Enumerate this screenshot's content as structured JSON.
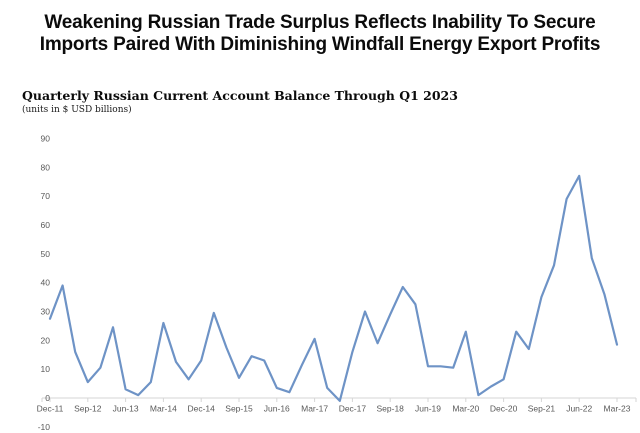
{
  "header": {
    "title_lines": [
      "Weakening Russian Trade Surplus Reflects Inability To Secure",
      "Imports Paired With Diminishing Windfall Energy Export Profits"
    ]
  },
  "chart_data": {
    "type": "line",
    "title": "Quarterly Russian Current Account Balance Through Q1 2023",
    "units_note": "(units in $ USD billions)",
    "x": [
      "Dec-11",
      "Mar-12",
      "Jun-12",
      "Sep-12",
      "Dec-12",
      "Mar-13",
      "Jun-13",
      "Sep-13",
      "Dec-13",
      "Mar-14",
      "Jun-14",
      "Sep-14",
      "Dec-14",
      "Mar-15",
      "Jun-15",
      "Sep-15",
      "Dec-15",
      "Mar-16",
      "Jun-16",
      "Sep-16",
      "Dec-16",
      "Mar-17",
      "Jun-17",
      "Sep-17",
      "Dec-17",
      "Mar-18",
      "Jun-18",
      "Sep-18",
      "Dec-18",
      "Mar-19",
      "Jun-19",
      "Sep-19",
      "Dec-19",
      "Mar-20",
      "Jun-20",
      "Sep-20",
      "Dec-20",
      "Mar-21",
      "Jun-21",
      "Sep-21",
      "Dec-21",
      "Mar-22",
      "Jun-22",
      "Sep-22",
      "Dec-22",
      "Mar-23"
    ],
    "values": [
      27.5,
      39,
      16,
      5.5,
      10.5,
      24.5,
      3,
      1,
      5.5,
      26,
      12.5,
      6.5,
      13,
      29.5,
      17.5,
      7,
      14.5,
      13,
      3.5,
      2,
      11.5,
      20.5,
      3.5,
      -1,
      16,
      30,
      19,
      29,
      38.5,
      32.5,
      11,
      11,
      10.5,
      23,
      1,
      4,
      6.5,
      23,
      17,
      35,
      46,
      69,
      77,
      48.5,
      36,
      18.5
    ],
    "x_ticks_shown": [
      "Dec-11",
      "Sep-12",
      "Jun-13",
      "Mar-14",
      "Dec-14",
      "Sep-15",
      "Jun-16",
      "Mar-17",
      "Dec-17",
      "Sep-18",
      "Jun-19",
      "Mar-20",
      "Dec-20",
      "Sep-21",
      "Jun-22",
      "Mar-23"
    ],
    "x_tick_every": 3,
    "ylim": [
      -10,
      90
    ],
    "y_tick_step": 10,
    "grid": false,
    "legend": "none",
    "line_color": "#6e93c6",
    "axis_color": "#d6d6d6",
    "label_color": "#595959"
  }
}
